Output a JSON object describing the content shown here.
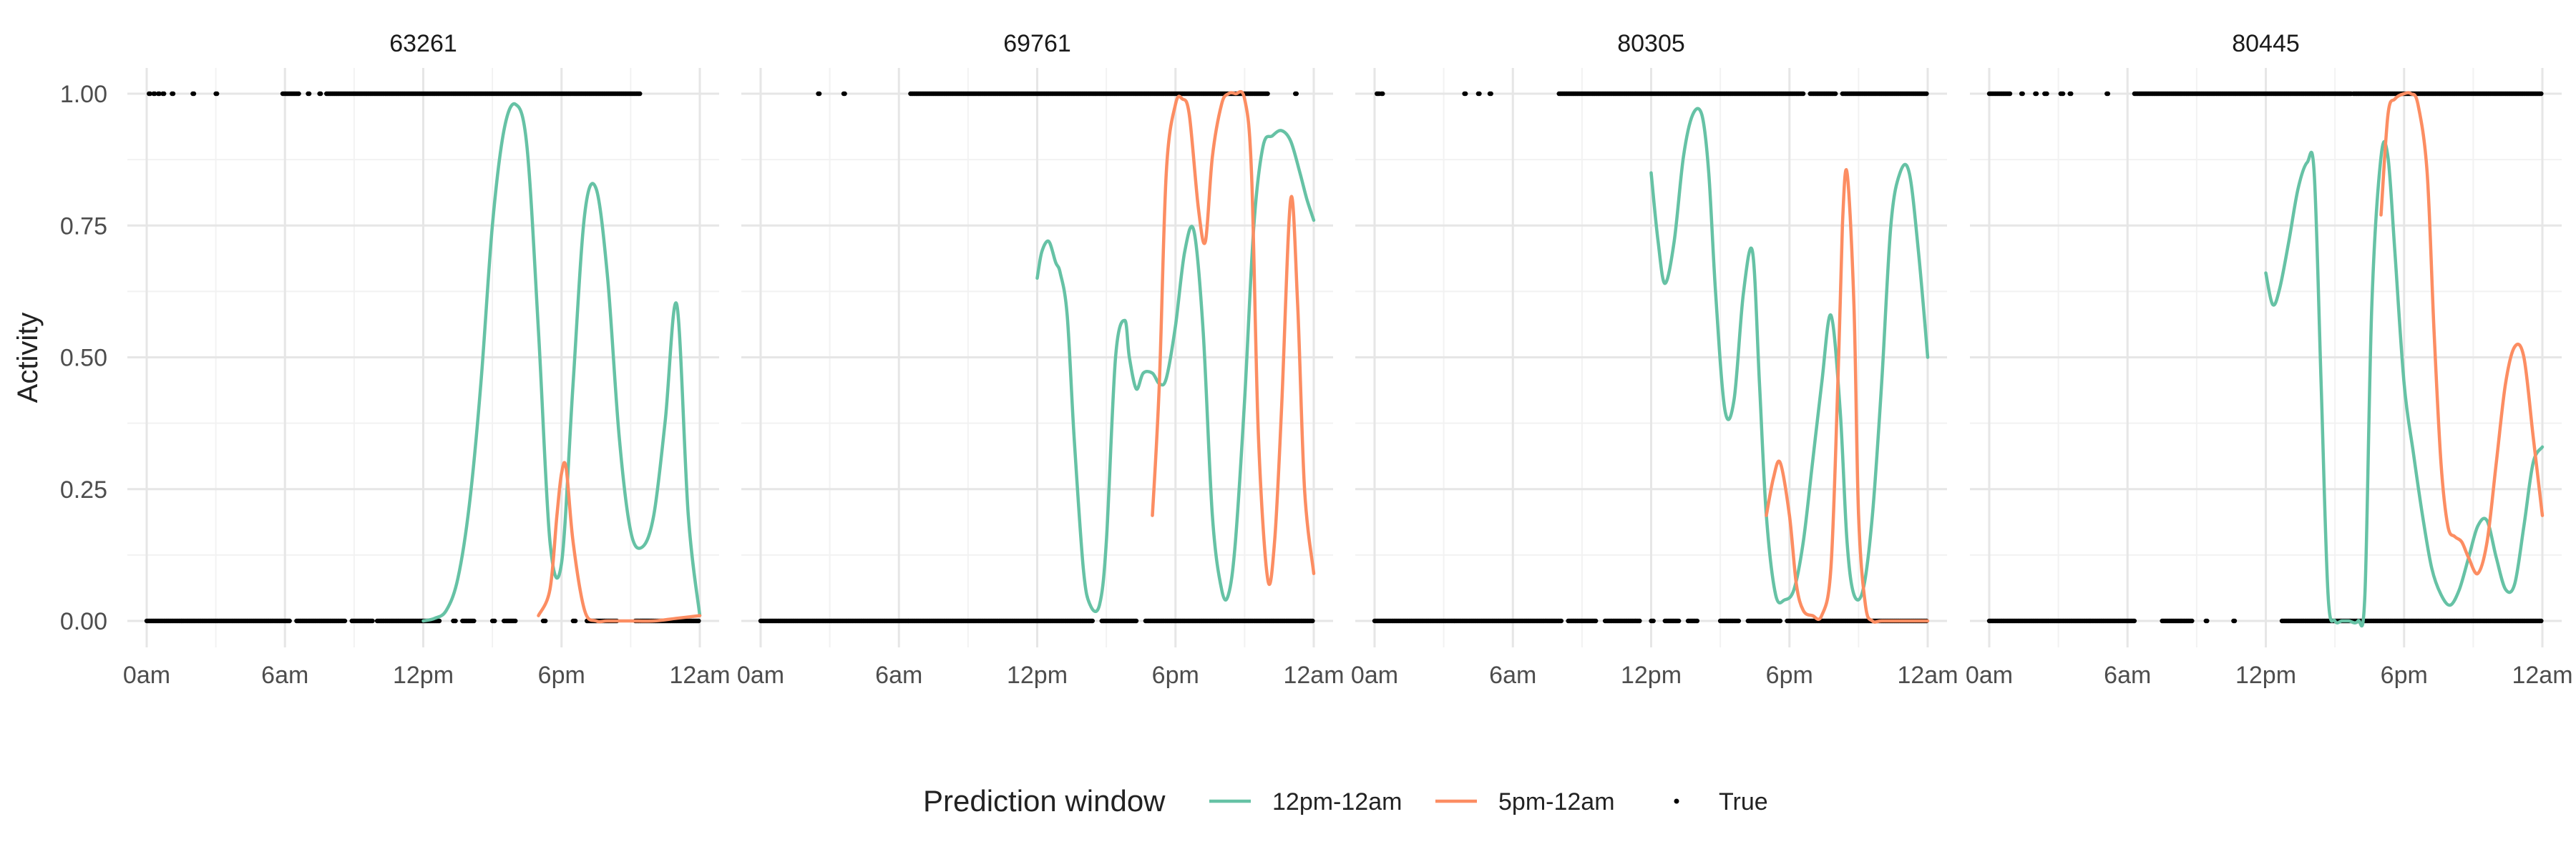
{
  "chart_data": {
    "type": "line",
    "ylabel": "Activity",
    "xlabel": "",
    "x_unit": "hours of day",
    "xlim": [
      0,
      24
    ],
    "ylim": [
      0,
      1
    ],
    "x_ticks": [
      {
        "value": 0,
        "label": "0am"
      },
      {
        "value": 6,
        "label": "6am"
      },
      {
        "value": 12,
        "label": "12pm"
      },
      {
        "value": 18,
        "label": "6pm"
      },
      {
        "value": 24,
        "label": "12am"
      }
    ],
    "y_ticks": [
      {
        "value": 0,
        "label": "0.00"
      },
      {
        "value": 0.25,
        "label": "0.25"
      },
      {
        "value": 0.5,
        "label": "0.50"
      },
      {
        "value": 0.75,
        "label": "0.75"
      },
      {
        "value": 1,
        "label": "1.00"
      }
    ],
    "grid": true,
    "legend": {
      "title": "Prediction window",
      "position": "bottom",
      "entries": [
        {
          "label": "12pm-12am",
          "kind": "line",
          "color": "#66c2a5"
        },
        {
          "label": "5pm-12am",
          "kind": "line",
          "color": "#fc8d62"
        },
        {
          "label": "True",
          "kind": "point",
          "color": "#000000"
        }
      ]
    },
    "panels": [
      {
        "title": "63261",
        "true_one_ranges": [
          [
            0.1,
            0.15
          ],
          [
            0.3,
            0.35
          ],
          [
            0.5,
            0.55
          ],
          [
            0.7,
            0.75
          ],
          [
            1.1,
            1.15
          ],
          [
            2.0,
            2.05
          ],
          [
            3.0,
            3.05
          ],
          [
            5.9,
            6.6
          ],
          [
            7.0,
            7.05
          ],
          [
            7.5,
            7.55
          ],
          [
            7.8,
            21.4
          ]
        ],
        "true_zero_ranges": [
          [
            0,
            6.2
          ],
          [
            6.5,
            8.6
          ],
          [
            8.9,
            9.8
          ],
          [
            10.0,
            12.7
          ],
          [
            13.3,
            13.4
          ],
          [
            13.7,
            14.2
          ],
          [
            15.0,
            15.1
          ],
          [
            15.5,
            16.0
          ],
          [
            17.2,
            17.3
          ],
          [
            18.5,
            18.6
          ],
          [
            19.1,
            20.4
          ],
          [
            21.2,
            24
          ]
        ],
        "series": [
          {
            "legend": "12pm-12am",
            "color": "#66c2a5",
            "x": [
              12.0,
              12.5,
              13.0,
              13.5,
              14.0,
              14.5,
              15.0,
              15.5,
              16.0,
              16.5,
              17.0,
              17.5,
              18.0,
              18.5,
              19.0,
              19.5,
              20.0,
              20.5,
              21.0,
              21.5,
              22.0,
              22.5,
              23.0,
              23.5,
              24.0
            ],
            "y": [
              0.0,
              0.005,
              0.02,
              0.08,
              0.22,
              0.45,
              0.75,
              0.93,
              0.98,
              0.9,
              0.55,
              0.15,
              0.11,
              0.45,
              0.77,
              0.82,
              0.65,
              0.35,
              0.17,
              0.14,
              0.2,
              0.38,
              0.6,
              0.2,
              0.01
            ]
          },
          {
            "legend": "5pm-12am",
            "color": "#fc8d62",
            "x": [
              17.0,
              17.5,
              17.8,
              18.0,
              18.2,
              18.5,
              19.0,
              19.5,
              20.0,
              21.0,
              22.0,
              23.0,
              24.0
            ],
            "y": [
              0.01,
              0.06,
              0.2,
              0.28,
              0.29,
              0.15,
              0.02,
              0.0,
              0.0,
              0.0,
              0.0,
              0.005,
              0.01
            ]
          }
        ]
      },
      {
        "title": "69761",
        "true_one_ranges": [
          [
            2.5,
            2.55
          ],
          [
            3.6,
            3.65
          ],
          [
            6.5,
            22.0
          ],
          [
            23.2,
            23.25
          ]
        ],
        "true_zero_ranges": [
          [
            0,
            14.4
          ],
          [
            14.8,
            16.3
          ],
          [
            16.7,
            24
          ]
        ],
        "series": [
          {
            "legend": "12pm-12am",
            "color": "#66c2a5",
            "x": [
              12.0,
              12.2,
              12.5,
              12.8,
              13.0,
              13.3,
              13.6,
              14.0,
              14.3,
              14.7,
              15.0,
              15.4,
              15.8,
              16.0,
              16.3,
              16.6,
              17.0,
              17.3,
              17.6,
              18.0,
              18.4,
              18.8,
              19.2,
              19.6,
              20.0,
              20.3,
              20.6,
              21.0,
              21.4,
              21.8,
              22.2,
              22.6,
              23.0,
              23.4,
              23.7,
              24.0
            ],
            "y": [
              0.65,
              0.7,
              0.72,
              0.68,
              0.66,
              0.58,
              0.35,
              0.1,
              0.03,
              0.03,
              0.15,
              0.5,
              0.57,
              0.5,
              0.44,
              0.47,
              0.47,
              0.45,
              0.46,
              0.56,
              0.7,
              0.74,
              0.55,
              0.2,
              0.06,
              0.05,
              0.15,
              0.42,
              0.75,
              0.9,
              0.92,
              0.93,
              0.91,
              0.85,
              0.8,
              0.76
            ]
          },
          {
            "legend": "5pm-12am",
            "color": "#fc8d62",
            "x": [
              17.0,
              17.3,
              17.6,
              18.0,
              18.3,
              18.6,
              19.0,
              19.3,
              19.6,
              20.0,
              20.3,
              20.6,
              21.0,
              21.3,
              21.6,
              22.0,
              22.3,
              22.6,
              23.0,
              23.3,
              23.6,
              24.0
            ],
            "y": [
              0.2,
              0.45,
              0.85,
              0.98,
              0.99,
              0.96,
              0.78,
              0.72,
              0.88,
              0.98,
              1.0,
              1.0,
              0.99,
              0.85,
              0.35,
              0.08,
              0.15,
              0.4,
              0.8,
              0.6,
              0.25,
              0.09
            ]
          }
        ]
      },
      {
        "title": "80305",
        "true_one_ranges": [
          [
            0.1,
            0.2
          ],
          [
            0.3,
            0.35
          ],
          [
            3.9,
            3.95
          ],
          [
            4.5,
            4.55
          ],
          [
            5.0,
            5.05
          ],
          [
            8.0,
            18.6
          ],
          [
            18.9,
            20.0
          ],
          [
            20.3,
            24
          ]
        ],
        "true_zero_ranges": [
          [
            0,
            8.1
          ],
          [
            8.4,
            9.6
          ],
          [
            10.0,
            11.5
          ],
          [
            12.0,
            12.1
          ],
          [
            12.6,
            13.2
          ],
          [
            13.6,
            14.0
          ],
          [
            15.0,
            15.8
          ],
          [
            16.2,
            17.6
          ],
          [
            17.9,
            24
          ]
        ],
        "series": [
          {
            "legend": "12pm-12am",
            "color": "#66c2a5",
            "x": [
              12.0,
              12.3,
              12.6,
              13.0,
              13.4,
              13.8,
              14.2,
              14.5,
              14.8,
              15.2,
              15.6,
              16.0,
              16.4,
              16.7,
              17.0,
              17.4,
              17.8,
              18.2,
              18.6,
              19.0,
              19.4,
              19.8,
              20.2,
              20.5,
              20.8,
              21.2,
              21.6,
              22.0,
              22.4,
              22.8,
              23.2,
              23.6,
              24.0
            ],
            "y": [
              0.85,
              0.72,
              0.64,
              0.72,
              0.88,
              0.96,
              0.96,
              0.85,
              0.62,
              0.4,
              0.42,
              0.62,
              0.7,
              0.45,
              0.2,
              0.05,
              0.04,
              0.06,
              0.15,
              0.3,
              0.45,
              0.58,
              0.4,
              0.15,
              0.05,
              0.06,
              0.2,
              0.45,
              0.75,
              0.85,
              0.85,
              0.7,
              0.5
            ]
          },
          {
            "legend": "5pm-12am",
            "color": "#fc8d62",
            "x": [
              17.0,
              17.3,
              17.6,
              18.0,
              18.3,
              18.6,
              19.0,
              19.4,
              19.8,
              20.1,
              20.3,
              20.5,
              20.8,
              21.0,
              21.3,
              21.6,
              22.0,
              23.0,
              24.0
            ],
            "y": [
              0.2,
              0.27,
              0.3,
              0.2,
              0.07,
              0.02,
              0.01,
              0.01,
              0.1,
              0.45,
              0.75,
              0.85,
              0.6,
              0.2,
              0.03,
              0.0,
              0.0,
              0.0,
              0.0
            ]
          }
        ]
      },
      {
        "title": "80445",
        "true_one_ranges": [
          [
            0,
            0.9
          ],
          [
            1.4,
            1.45
          ],
          [
            2.0,
            2.05
          ],
          [
            2.4,
            2.5
          ],
          [
            3.1,
            3.2
          ],
          [
            3.5,
            3.55
          ],
          [
            5.1,
            5.15
          ],
          [
            6.3,
            15.7
          ],
          [
            15.8,
            24
          ]
        ],
        "true_zero_ranges": [
          [
            0,
            6.3
          ],
          [
            7.5,
            8.8
          ],
          [
            9.4,
            9.45
          ],
          [
            10.6,
            10.65
          ],
          [
            12.7,
            24
          ]
        ],
        "series": [
          {
            "legend": "12pm-12am",
            "color": "#66c2a5",
            "x": [
              12.0,
              12.3,
              12.6,
              13.0,
              13.4,
              13.8,
              14.1,
              14.4,
              14.7,
              15.0,
              15.3,
              15.6,
              16.0,
              16.3,
              16.6,
              17.0,
              17.3,
              17.6,
              18.0,
              18.4,
              18.8,
              19.2,
              19.6,
              20.0,
              20.4,
              20.8,
              21.2,
              21.6,
              22.0,
              22.4,
              22.8,
              23.2,
              23.6,
              24.0
            ],
            "y": [
              0.66,
              0.6,
              0.63,
              0.72,
              0.82,
              0.87,
              0.85,
              0.45,
              0.05,
              0.0,
              0.0,
              0.0,
              0.0,
              0.05,
              0.6,
              0.88,
              0.88,
              0.7,
              0.45,
              0.32,
              0.2,
              0.1,
              0.05,
              0.03,
              0.06,
              0.12,
              0.18,
              0.19,
              0.12,
              0.06,
              0.07,
              0.18,
              0.3,
              0.33
            ]
          },
          {
            "legend": "5pm-12am",
            "color": "#fc8d62",
            "x": [
              17.0,
              17.3,
              17.6,
              18.0,
              18.3,
              18.6,
              19.0,
              19.3,
              19.6,
              19.9,
              20.2,
              20.5,
              20.8,
              21.2,
              21.6,
              22.0,
              22.4,
              22.8,
              23.2,
              23.6,
              24.0
            ],
            "y": [
              0.77,
              0.96,
              0.99,
              1.0,
              1.0,
              0.98,
              0.85,
              0.55,
              0.3,
              0.18,
              0.16,
              0.15,
              0.12,
              0.09,
              0.15,
              0.3,
              0.45,
              0.52,
              0.5,
              0.35,
              0.2
            ]
          }
        ]
      }
    ]
  }
}
